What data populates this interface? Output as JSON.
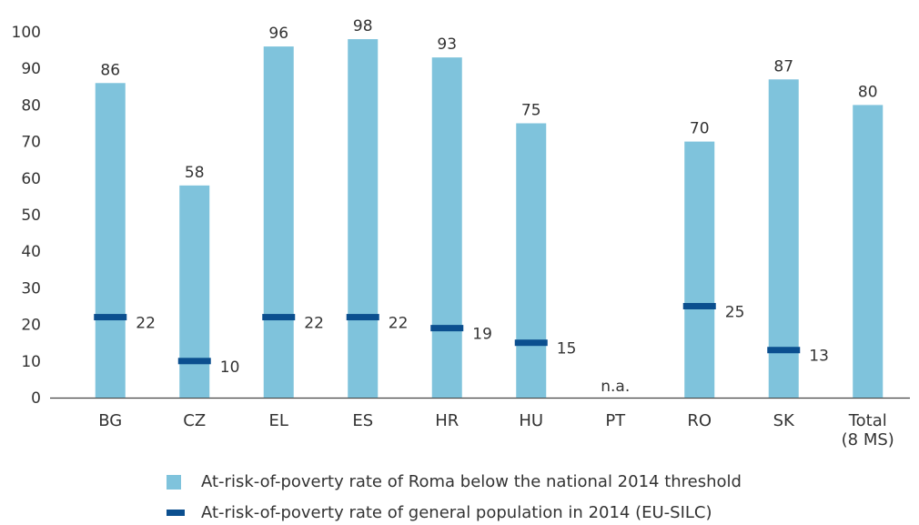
{
  "chart_data": {
    "type": "bar",
    "categories": [
      "BG",
      "CZ",
      "EL",
      "ES",
      "HR",
      "HU",
      "PT",
      "RO",
      "SK",
      "Total\n(8 MS)"
    ],
    "ylim": [
      0,
      100
    ],
    "yticks": [
      0,
      10,
      20,
      30,
      40,
      50,
      60,
      70,
      80,
      90,
      100
    ],
    "grid": false,
    "legend_position": "bottom",
    "series": [
      {
        "name": "At-risk-of-poverty rate of Roma below the national 2014 threshold",
        "marker": "bar",
        "color": "#7fc3dc",
        "values": [
          86,
          58,
          96,
          98,
          93,
          75,
          null,
          70,
          87,
          80
        ]
      },
      {
        "name": "At-risk-of-poverty rate of general population in 2014 (EU-SILC)",
        "marker": "dash",
        "color": "#0b4f8f",
        "values": [
          22,
          10,
          22,
          22,
          19,
          15,
          null,
          25,
          13,
          null
        ]
      }
    ],
    "annotations": [
      {
        "category": "PT",
        "text": "n.a."
      }
    ]
  }
}
